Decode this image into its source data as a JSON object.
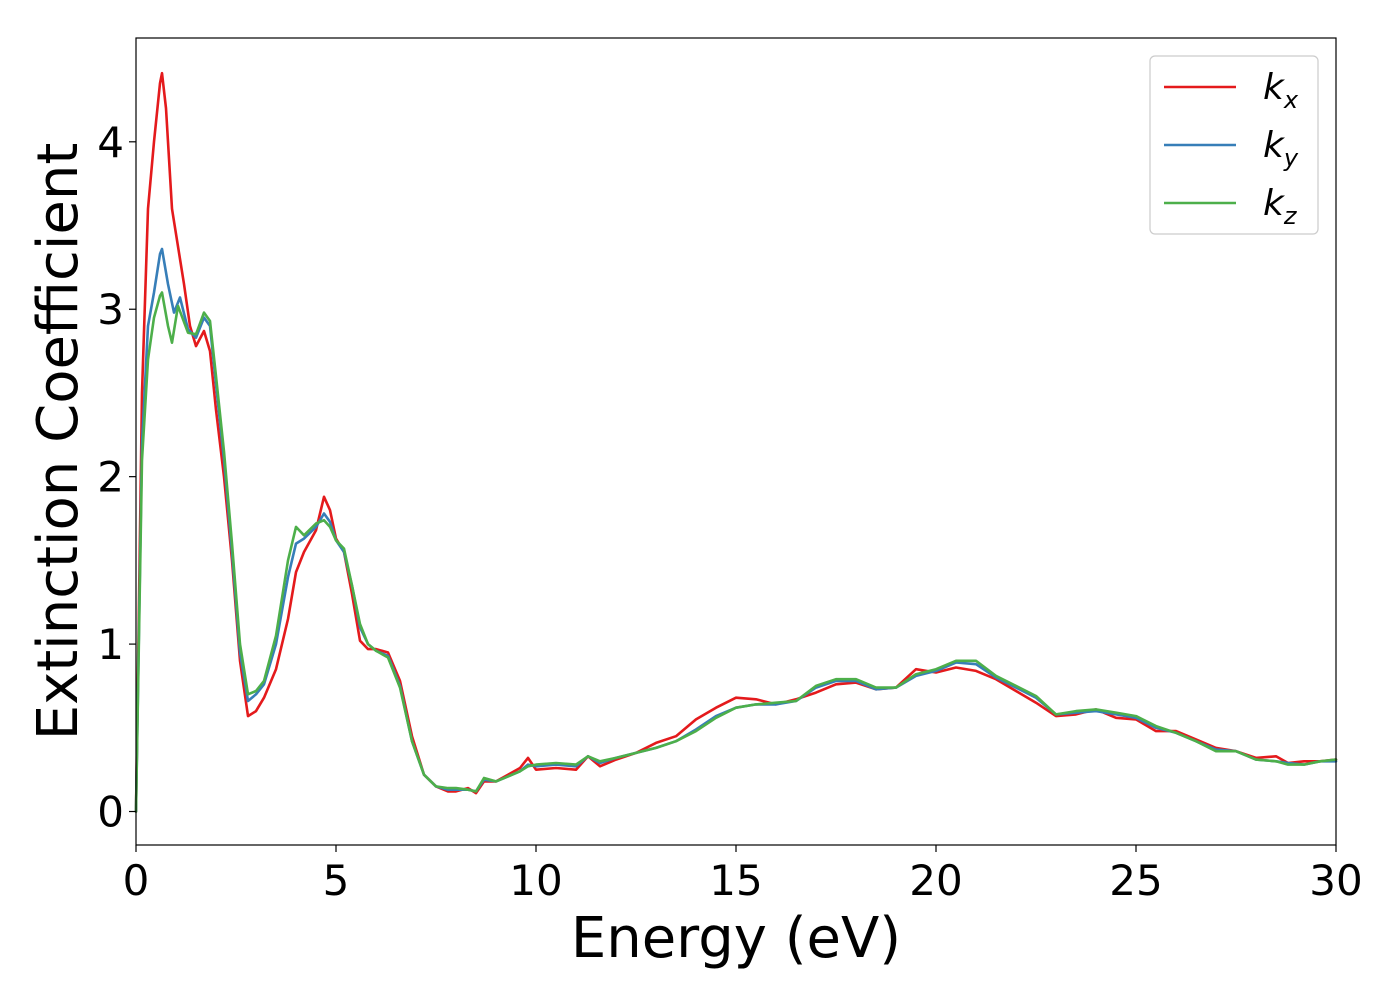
{
  "chart_data": {
    "type": "line",
    "xlabel": "Energy (eV)",
    "ylabel": "Extinction Coefficient",
    "xlim": [
      0,
      30
    ],
    "ylim": [
      -0.2,
      4.62
    ],
    "xticks": [
      0,
      5,
      10,
      15,
      20,
      25,
      30
    ],
    "yticks": [
      0,
      1,
      2,
      3,
      4
    ],
    "xtick_labels": [
      "0",
      "5",
      "10",
      "15",
      "20",
      "25",
      "30"
    ],
    "ytick_labels": [
      "0",
      "1",
      "2",
      "3",
      "4"
    ],
    "grid": false,
    "legend_position": "top-right",
    "series": [
      {
        "name": "k",
        "subscript": "x",
        "color": "#e41a1c",
        "points": [
          [
            0,
            0
          ],
          [
            0.15,
            2.5
          ],
          [
            0.3,
            3.6
          ],
          [
            0.45,
            4.0
          ],
          [
            0.6,
            4.35
          ],
          [
            0.65,
            4.41
          ],
          [
            0.75,
            4.2
          ],
          [
            0.9,
            3.6
          ],
          [
            1.1,
            3.3
          ],
          [
            1.2,
            3.15
          ],
          [
            1.35,
            2.9
          ],
          [
            1.5,
            2.78
          ],
          [
            1.7,
            2.87
          ],
          [
            1.85,
            2.75
          ],
          [
            2.0,
            2.4
          ],
          [
            2.2,
            2.0
          ],
          [
            2.4,
            1.5
          ],
          [
            2.6,
            0.9
          ],
          [
            2.8,
            0.57
          ],
          [
            3.0,
            0.6
          ],
          [
            3.2,
            0.68
          ],
          [
            3.5,
            0.85
          ],
          [
            3.8,
            1.15
          ],
          [
            4.0,
            1.43
          ],
          [
            4.2,
            1.55
          ],
          [
            4.5,
            1.68
          ],
          [
            4.7,
            1.88
          ],
          [
            4.85,
            1.8
          ],
          [
            5.0,
            1.63
          ],
          [
            5.2,
            1.55
          ],
          [
            5.4,
            1.3
          ],
          [
            5.6,
            1.02
          ],
          [
            5.8,
            0.97
          ],
          [
            6.0,
            0.97
          ],
          [
            6.3,
            0.95
          ],
          [
            6.6,
            0.78
          ],
          [
            6.9,
            0.45
          ],
          [
            7.2,
            0.22
          ],
          [
            7.5,
            0.15
          ],
          [
            7.8,
            0.12
          ],
          [
            8.0,
            0.12
          ],
          [
            8.3,
            0.14
          ],
          [
            8.5,
            0.11
          ],
          [
            8.7,
            0.18
          ],
          [
            9.0,
            0.18
          ],
          [
            9.3,
            0.22
          ],
          [
            9.6,
            0.26
          ],
          [
            9.8,
            0.32
          ],
          [
            10.0,
            0.25
          ],
          [
            10.5,
            0.26
          ],
          [
            11.0,
            0.25
          ],
          [
            11.3,
            0.33
          ],
          [
            11.6,
            0.27
          ],
          [
            12.0,
            0.31
          ],
          [
            12.5,
            0.35
          ],
          [
            13.0,
            0.41
          ],
          [
            13.5,
            0.45
          ],
          [
            14.0,
            0.55
          ],
          [
            14.5,
            0.62
          ],
          [
            15.0,
            0.68
          ],
          [
            15.5,
            0.67
          ],
          [
            16.0,
            0.64
          ],
          [
            16.5,
            0.67
          ],
          [
            17.0,
            0.71
          ],
          [
            17.5,
            0.76
          ],
          [
            18.0,
            0.77
          ],
          [
            18.5,
            0.73
          ],
          [
            19.0,
            0.74
          ],
          [
            19.5,
            0.85
          ],
          [
            20.0,
            0.83
          ],
          [
            20.5,
            0.86
          ],
          [
            21.0,
            0.84
          ],
          [
            21.5,
            0.79
          ],
          [
            22.0,
            0.72
          ],
          [
            22.5,
            0.65
          ],
          [
            23.0,
            0.57
          ],
          [
            23.5,
            0.58
          ],
          [
            24.0,
            0.61
          ],
          [
            24.5,
            0.56
          ],
          [
            25.0,
            0.55
          ],
          [
            25.5,
            0.48
          ],
          [
            26.0,
            0.48
          ],
          [
            26.5,
            0.43
          ],
          [
            27.0,
            0.38
          ],
          [
            27.5,
            0.36
          ],
          [
            28.0,
            0.32
          ],
          [
            28.5,
            0.33
          ],
          [
            28.8,
            0.29
          ],
          [
            29.2,
            0.3
          ],
          [
            29.6,
            0.3
          ],
          [
            30.0,
            0.31
          ]
        ]
      },
      {
        "name": "k",
        "subscript": "y",
        "color": "#377eb8",
        "points": [
          [
            0,
            0
          ],
          [
            0.15,
            2.2
          ],
          [
            0.3,
            2.9
          ],
          [
            0.45,
            3.1
          ],
          [
            0.6,
            3.33
          ],
          [
            0.65,
            3.36
          ],
          [
            0.8,
            3.15
          ],
          [
            0.95,
            2.98
          ],
          [
            1.1,
            3.07
          ],
          [
            1.3,
            2.88
          ],
          [
            1.5,
            2.83
          ],
          [
            1.7,
            2.95
          ],
          [
            1.85,
            2.9
          ],
          [
            2.0,
            2.55
          ],
          [
            2.2,
            2.1
          ],
          [
            2.4,
            1.55
          ],
          [
            2.6,
            0.95
          ],
          [
            2.8,
            0.66
          ],
          [
            3.0,
            0.7
          ],
          [
            3.2,
            0.76
          ],
          [
            3.5,
            1.0
          ],
          [
            3.8,
            1.4
          ],
          [
            4.0,
            1.6
          ],
          [
            4.2,
            1.63
          ],
          [
            4.5,
            1.7
          ],
          [
            4.7,
            1.78
          ],
          [
            4.85,
            1.73
          ],
          [
            5.0,
            1.62
          ],
          [
            5.2,
            1.55
          ],
          [
            5.4,
            1.35
          ],
          [
            5.6,
            1.1
          ],
          [
            5.8,
            1.0
          ],
          [
            6.0,
            0.96
          ],
          [
            6.3,
            0.93
          ],
          [
            6.6,
            0.75
          ],
          [
            6.9,
            0.42
          ],
          [
            7.2,
            0.22
          ],
          [
            7.5,
            0.15
          ],
          [
            7.8,
            0.13
          ],
          [
            8.0,
            0.13
          ],
          [
            8.3,
            0.13
          ],
          [
            8.5,
            0.12
          ],
          [
            8.7,
            0.19
          ],
          [
            9.0,
            0.18
          ],
          [
            9.3,
            0.21
          ],
          [
            9.6,
            0.24
          ],
          [
            9.8,
            0.28
          ],
          [
            10.0,
            0.27
          ],
          [
            10.5,
            0.28
          ],
          [
            11.0,
            0.27
          ],
          [
            11.3,
            0.33
          ],
          [
            11.6,
            0.29
          ],
          [
            12.0,
            0.32
          ],
          [
            12.5,
            0.35
          ],
          [
            13.0,
            0.38
          ],
          [
            13.5,
            0.42
          ],
          [
            14.0,
            0.49
          ],
          [
            14.5,
            0.57
          ],
          [
            15.0,
            0.62
          ],
          [
            15.5,
            0.64
          ],
          [
            16.0,
            0.64
          ],
          [
            16.5,
            0.66
          ],
          [
            17.0,
            0.74
          ],
          [
            17.5,
            0.78
          ],
          [
            18.0,
            0.78
          ],
          [
            18.5,
            0.73
          ],
          [
            19.0,
            0.74
          ],
          [
            19.5,
            0.81
          ],
          [
            20.0,
            0.84
          ],
          [
            20.5,
            0.89
          ],
          [
            21.0,
            0.88
          ],
          [
            21.5,
            0.8
          ],
          [
            22.0,
            0.74
          ],
          [
            22.5,
            0.68
          ],
          [
            23.0,
            0.58
          ],
          [
            23.5,
            0.59
          ],
          [
            24.0,
            0.6
          ],
          [
            24.5,
            0.58
          ],
          [
            25.0,
            0.56
          ],
          [
            25.5,
            0.5
          ],
          [
            26.0,
            0.47
          ],
          [
            26.5,
            0.42
          ],
          [
            27.0,
            0.37
          ],
          [
            27.5,
            0.36
          ],
          [
            28.0,
            0.31
          ],
          [
            28.5,
            0.3
          ],
          [
            28.8,
            0.29
          ],
          [
            29.2,
            0.28
          ],
          [
            29.6,
            0.3
          ],
          [
            30.0,
            0.3
          ]
        ]
      },
      {
        "name": "k",
        "subscript": "z",
        "color": "#4daf4a",
        "points": [
          [
            0,
            0
          ],
          [
            0.15,
            2.1
          ],
          [
            0.3,
            2.7
          ],
          [
            0.45,
            2.95
          ],
          [
            0.6,
            3.08
          ],
          [
            0.65,
            3.1
          ],
          [
            0.8,
            2.9
          ],
          [
            0.9,
            2.8
          ],
          [
            1.05,
            3.02
          ],
          [
            1.3,
            2.86
          ],
          [
            1.5,
            2.85
          ],
          [
            1.7,
            2.98
          ],
          [
            1.85,
            2.93
          ],
          [
            2.0,
            2.6
          ],
          [
            2.2,
            2.15
          ],
          [
            2.4,
            1.6
          ],
          [
            2.6,
            1.0
          ],
          [
            2.8,
            0.7
          ],
          [
            3.0,
            0.72
          ],
          [
            3.2,
            0.78
          ],
          [
            3.5,
            1.05
          ],
          [
            3.8,
            1.5
          ],
          [
            4.0,
            1.7
          ],
          [
            4.2,
            1.65
          ],
          [
            4.5,
            1.72
          ],
          [
            4.7,
            1.74
          ],
          [
            4.85,
            1.7
          ],
          [
            5.0,
            1.62
          ],
          [
            5.2,
            1.57
          ],
          [
            5.4,
            1.35
          ],
          [
            5.6,
            1.12
          ],
          [
            5.8,
            1.0
          ],
          [
            6.0,
            0.96
          ],
          [
            6.3,
            0.92
          ],
          [
            6.6,
            0.74
          ],
          [
            6.9,
            0.42
          ],
          [
            7.2,
            0.22
          ],
          [
            7.5,
            0.15
          ],
          [
            7.8,
            0.14
          ],
          [
            8.0,
            0.14
          ],
          [
            8.3,
            0.13
          ],
          [
            8.5,
            0.12
          ],
          [
            8.7,
            0.2
          ],
          [
            9.0,
            0.18
          ],
          [
            9.3,
            0.21
          ],
          [
            9.6,
            0.24
          ],
          [
            9.8,
            0.27
          ],
          [
            10.0,
            0.28
          ],
          [
            10.5,
            0.29
          ],
          [
            11.0,
            0.28
          ],
          [
            11.3,
            0.33
          ],
          [
            11.6,
            0.3
          ],
          [
            12.0,
            0.32
          ],
          [
            12.5,
            0.35
          ],
          [
            13.0,
            0.38
          ],
          [
            13.5,
            0.42
          ],
          [
            14.0,
            0.48
          ],
          [
            14.5,
            0.56
          ],
          [
            15.0,
            0.62
          ],
          [
            15.5,
            0.64
          ],
          [
            16.0,
            0.65
          ],
          [
            16.5,
            0.66
          ],
          [
            17.0,
            0.75
          ],
          [
            17.5,
            0.79
          ],
          [
            18.0,
            0.79
          ],
          [
            18.5,
            0.74
          ],
          [
            19.0,
            0.74
          ],
          [
            19.5,
            0.82
          ],
          [
            20.0,
            0.85
          ],
          [
            20.5,
            0.9
          ],
          [
            21.0,
            0.9
          ],
          [
            21.5,
            0.81
          ],
          [
            22.0,
            0.75
          ],
          [
            22.5,
            0.69
          ],
          [
            23.0,
            0.58
          ],
          [
            23.5,
            0.6
          ],
          [
            24.0,
            0.61
          ],
          [
            24.5,
            0.59
          ],
          [
            25.0,
            0.57
          ],
          [
            25.5,
            0.51
          ],
          [
            26.0,
            0.47
          ],
          [
            26.5,
            0.42
          ],
          [
            27.0,
            0.36
          ],
          [
            27.5,
            0.36
          ],
          [
            28.0,
            0.31
          ],
          [
            28.5,
            0.3
          ],
          [
            28.8,
            0.28
          ],
          [
            29.2,
            0.28
          ],
          [
            29.6,
            0.3
          ],
          [
            30.0,
            0.31
          ]
        ]
      }
    ]
  }
}
